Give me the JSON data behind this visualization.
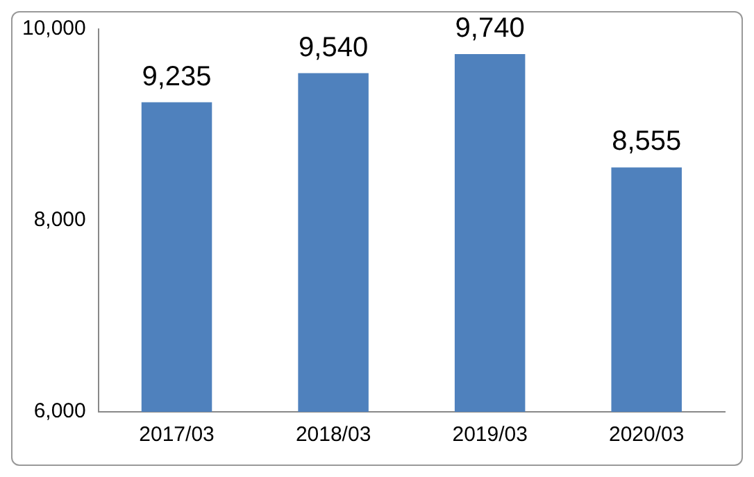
{
  "chart_data": {
    "type": "bar",
    "categories": [
      "2017/03",
      "2018/03",
      "2019/03",
      "2020/03"
    ],
    "values": [
      9235,
      9540,
      9740,
      8555
    ],
    "color": "#4f81bd",
    "value_labels": [
      "9,235",
      "9,540",
      "9,740",
      "8,555"
    ],
    "ylim": [
      6000,
      10000
    ],
    "yticks": [
      {
        "value": 6000,
        "label": "6,000"
      },
      {
        "value": 8000,
        "label": "8,000"
      },
      {
        "value": 10000,
        "label": "10,000"
      }
    ],
    "grid": false,
    "legend": false
  }
}
